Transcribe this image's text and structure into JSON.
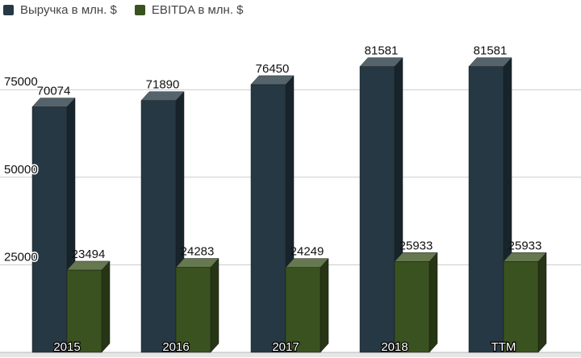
{
  "chart_data": {
    "type": "bar",
    "categories": [
      "2015",
      "2016",
      "2017",
      "2018",
      "TTM"
    ],
    "series": [
      {
        "name": "Выручка в млн. $",
        "color": "#253843",
        "values": [
          70074,
          71890,
          76450,
          81581,
          81581
        ],
        "labels": [
          "70074",
          "71890",
          "76450",
          "81581",
          "81581"
        ]
      },
      {
        "name": "EBITDA в млн. $",
        "color": "#3a521f",
        "values": [
          23494,
          24283,
          24249,
          25933,
          25933
        ],
        "labels": [
          "23494",
          "24283",
          "24249",
          "25933",
          "25933"
        ]
      }
    ],
    "y_ticks": [
      25000,
      50000,
      75000
    ],
    "ylim": [
      0,
      90000
    ],
    "grid": true,
    "legend_position": "top-left",
    "style": "3d"
  }
}
